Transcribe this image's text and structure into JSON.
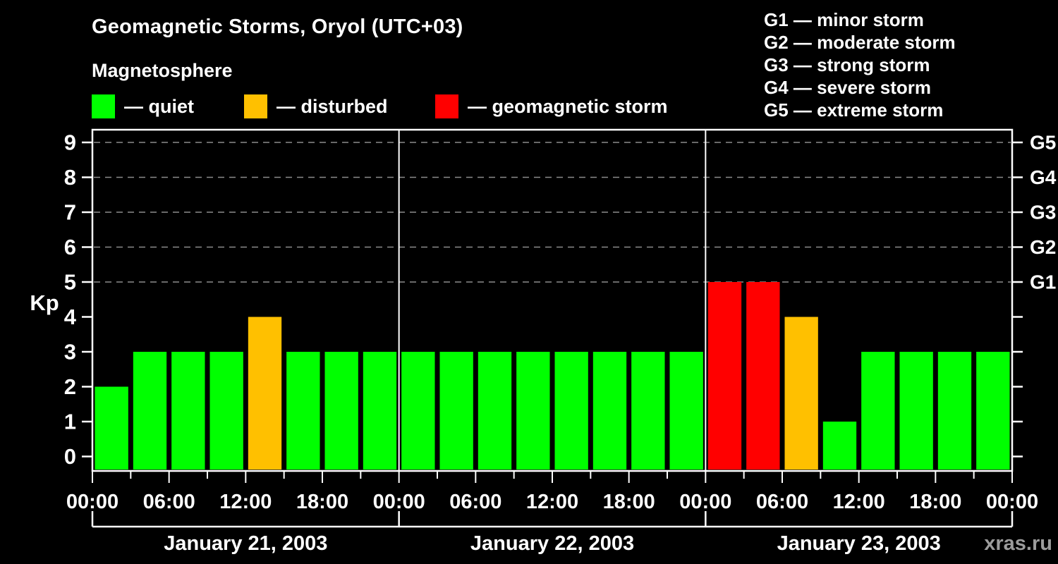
{
  "header": {
    "title": "Geomagnetic Storms, Oryol (UTC+03)",
    "subtitle": "Magnetosphere"
  },
  "legend": {
    "items": [
      {
        "name": "quiet",
        "label": "— quiet",
        "color": "#00ff00"
      },
      {
        "name": "disturbed",
        "label": "— disturbed",
        "color": "#ffc000"
      },
      {
        "name": "storm",
        "label": "— geomagnetic storm",
        "color": "#ff0000"
      }
    ]
  },
  "g_scale_legend": {
    "items": [
      "G1 — minor storm",
      "G2 — moderate storm",
      "G3 — strong storm",
      "G4 — severe storm",
      "G5 — extreme storm"
    ]
  },
  "watermark": "xras.ru",
  "colors": {
    "background": "#000000",
    "text": "#ffffff",
    "axis": "#ffffff",
    "grid": "#8c8c8c",
    "quiet": "#00ff00",
    "disturbed": "#ffc000",
    "storm": "#ff0000",
    "watermark": "#9c9c9c"
  },
  "chart_data": {
    "type": "bar",
    "title": "Geomagnetic Storms, Oryol (UTC+03)",
    "ylabel": "Kp",
    "ylim": [
      0,
      9
    ],
    "yticks": [
      0,
      1,
      2,
      3,
      4,
      5,
      6,
      7,
      8,
      9
    ],
    "grid_levels": [
      5,
      6,
      7,
      8,
      9
    ],
    "right_axis": [
      {
        "label": "G1",
        "kp": 5
      },
      {
        "label": "G2",
        "kp": 6
      },
      {
        "label": "G3",
        "kp": 7
      },
      {
        "label": "G4",
        "kp": 8
      },
      {
        "label": "G5",
        "kp": 9
      }
    ],
    "bar_interval_hours": 3,
    "x_label_cycle": [
      "00:00",
      "06:00",
      "12:00",
      "18:00"
    ],
    "x_label_step_hours": 6,
    "days": [
      {
        "date": "January 21, 2003",
        "kp": [
          2,
          3,
          3,
          3,
          4,
          3,
          3,
          3
        ]
      },
      {
        "date": "January 22, 2003",
        "kp": [
          3,
          3,
          3,
          3,
          3,
          3,
          3,
          3
        ]
      },
      {
        "date": "January 23, 2003",
        "kp": [
          5,
          5,
          4,
          1,
          3,
          3,
          3,
          3
        ]
      }
    ],
    "color_rule": {
      "quiet": "kp <= 3",
      "disturbed": "kp == 4",
      "storm": "kp >= 5"
    },
    "legend_position": "top",
    "grid": "dashed horizontal at G-storm levels only"
  }
}
